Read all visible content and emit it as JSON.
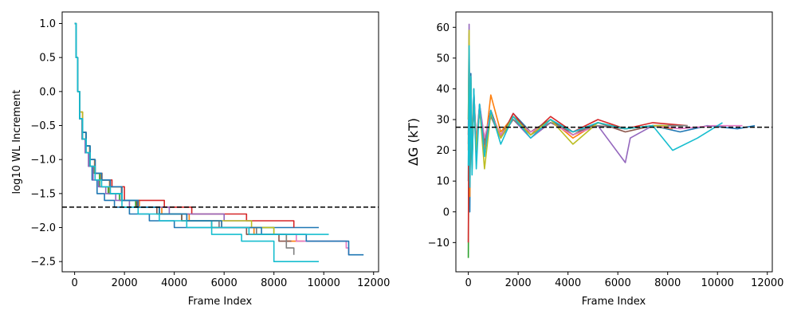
{
  "chart_data": [
    {
      "type": "line",
      "title": "",
      "xlabel": "Frame Index",
      "ylabel": "log10 WL Increment",
      "xlim": [
        -500,
        12200
      ],
      "ylim": [
        -2.65,
        1.17
      ],
      "xticks": [
        0,
        2000,
        4000,
        6000,
        8000,
        10000,
        12000
      ],
      "xtick_labels": [
        "0",
        "2000",
        "4000",
        "6000",
        "8000",
        "10000",
        "12000"
      ],
      "yticks": [
        1.0,
        0.5,
        0.0,
        -0.5,
        -1.0,
        -1.5,
        -2.0,
        -2.5
      ],
      "ytick_labels": [
        "1.0",
        "0.5",
        "0.0",
        "−0.5",
        "−1.0",
        "−1.5",
        "−2.0",
        "−2.5"
      ],
      "reference_line": {
        "y": -1.7,
        "style": "dashed",
        "color": "#000000"
      },
      "grid": false,
      "series": [
        {
          "color": "#1f77b4",
          "x": [
            0,
            60,
            120,
            200,
            300,
            420,
            560,
            700,
            900,
            1200,
            1600,
            2200,
            3000,
            4000,
            5300,
            6800,
            8200,
            9800
          ],
          "y": [
            1.0,
            0.5,
            0.0,
            -0.4,
            -0.7,
            -0.9,
            -1.1,
            -1.3,
            -1.5,
            -1.6,
            -1.7,
            -1.8,
            -1.9,
            -2.0,
            -2.0,
            -2.0,
            -2.0,
            -2.0
          ]
        },
        {
          "color": "#ff7f0e",
          "x": [
            0,
            60,
            120,
            200,
            320,
            450,
            600,
            800,
            1050,
            1400,
            1900,
            2600,
            3500,
            4600,
            5900,
            7200,
            8500,
            9200
          ],
          "y": [
            1.0,
            0.5,
            0.0,
            -0.4,
            -0.6,
            -0.8,
            -1.0,
            -1.2,
            -1.3,
            -1.5,
            -1.6,
            -1.7,
            -1.8,
            -1.9,
            -2.0,
            -2.1,
            -2.2,
            -2.2
          ]
        },
        {
          "color": "#2ca02c",
          "x": [
            0,
            60,
            120,
            200,
            300,
            430,
            580,
            760,
            1000,
            1350,
            1800,
            2450,
            3300,
            4300,
            5500,
            6800,
            8000,
            8300
          ],
          "y": [
            1.0,
            0.5,
            0.0,
            -0.4,
            -0.7,
            -0.9,
            -1.1,
            -1.2,
            -1.4,
            -1.5,
            -1.6,
            -1.7,
            -1.8,
            -1.9,
            -2.0,
            -2.0,
            -2.1,
            -2.1
          ]
        },
        {
          "color": "#d62728",
          "x": [
            0,
            60,
            120,
            200,
            320,
            460,
            620,
            820,
            1100,
            1500,
            2000,
            2700,
            3600,
            4700,
            5500,
            6900,
            8200,
            8800
          ],
          "y": [
            1.0,
            0.5,
            0.0,
            -0.3,
            -0.6,
            -0.8,
            -1.0,
            -1.2,
            -1.3,
            -1.4,
            -1.6,
            -1.6,
            -1.7,
            -1.8,
            -1.8,
            -1.9,
            -1.9,
            -2.0
          ]
        },
        {
          "color": "#9467bd",
          "x": [
            0,
            60,
            120,
            200,
            300,
            420,
            560,
            740,
            960,
            1250,
            1650,
            2200,
            2900,
            3800,
            4900,
            6000,
            7100
          ],
          "y": [
            1.0,
            0.5,
            0.0,
            -0.4,
            -0.7,
            -0.9,
            -1.1,
            -1.3,
            -1.4,
            -1.5,
            -1.6,
            -1.7,
            -1.7,
            -1.8,
            -1.8,
            -1.9,
            -1.9
          ]
        },
        {
          "color": "#8c564b",
          "x": [
            0,
            60,
            120,
            200,
            320,
            460,
            620,
            820,
            1080,
            1420,
            1880,
            2500,
            3300,
            4300,
            5500,
            6900,
            8200,
            8700
          ],
          "y": [
            1.0,
            0.5,
            0.0,
            -0.4,
            -0.6,
            -0.8,
            -1.0,
            -1.2,
            -1.3,
            -1.4,
            -1.6,
            -1.7,
            -1.8,
            -1.9,
            -2.0,
            -2.1,
            -2.2,
            -2.2
          ]
        },
        {
          "color": "#e377c2",
          "x": [
            0,
            60,
            120,
            200,
            320,
            460,
            620,
            820,
            1080,
            1430,
            1900,
            2550,
            3400,
            4500,
            5800,
            7300,
            8900,
            10900,
            11000
          ],
          "y": [
            1.0,
            0.5,
            0.0,
            -0.4,
            -0.6,
            -0.8,
            -1.0,
            -1.2,
            -1.3,
            -1.5,
            -1.6,
            -1.7,
            -1.8,
            -1.9,
            -2.0,
            -2.1,
            -2.2,
            -2.3,
            -2.4
          ]
        },
        {
          "color": "#7f7f7f",
          "x": [
            0,
            60,
            120,
            200,
            320,
            460,
            620,
            820,
            1080,
            1430,
            1900,
            2550,
            3400,
            4500,
            5800,
            7300,
            8500,
            8800
          ],
          "y": [
            1.0,
            0.5,
            0.0,
            -0.4,
            -0.7,
            -0.9,
            -1.1,
            -1.2,
            -1.4,
            -1.5,
            -1.6,
            -1.7,
            -1.8,
            -1.9,
            -2.0,
            -2.1,
            -2.3,
            -2.4
          ]
        },
        {
          "color": "#bcbd22",
          "x": [
            0,
            60,
            120,
            200,
            320,
            460,
            620,
            820,
            1080,
            1430,
            1900,
            2550,
            3400,
            4500,
            5800,
            7100,
            8000
          ],
          "y": [
            1.0,
            0.5,
            0.0,
            -0.3,
            -0.6,
            -0.8,
            -1.0,
            -1.2,
            -1.3,
            -1.4,
            -1.6,
            -1.7,
            -1.8,
            -1.9,
            -1.9,
            -2.0,
            -2.1
          ]
        },
        {
          "color": "#17becf",
          "x": [
            0,
            60,
            120,
            200,
            320,
            460,
            620,
            820,
            1080,
            1430,
            1900,
            2550,
            3400,
            4500,
            5500,
            6700,
            8000,
            9800
          ],
          "y": [
            1.0,
            0.5,
            0.0,
            -0.4,
            -0.6,
            -0.8,
            -1.0,
            -1.2,
            -1.3,
            -1.5,
            -1.6,
            -1.7,
            -1.8,
            -1.9,
            -2.1,
            -2.2,
            -2.5,
            -2.5
          ]
        },
        {
          "color": "#1f77b4",
          "x": [
            0,
            60,
            120,
            200,
            320,
            460,
            620,
            820,
            1080,
            1430,
            1900,
            2550,
            3400,
            4500,
            5900,
            7500,
            9300,
            11000,
            11600
          ],
          "y": [
            1.0,
            0.5,
            0.0,
            -0.4,
            -0.6,
            -0.8,
            -1.0,
            -1.2,
            -1.3,
            -1.4,
            -1.6,
            -1.7,
            -1.8,
            -1.9,
            -2.0,
            -2.1,
            -2.2,
            -2.4,
            -2.4
          ]
        },
        {
          "color": "#17becf",
          "x": [
            0,
            60,
            120,
            200,
            320,
            460,
            620,
            820,
            1080,
            1430,
            1900,
            2550,
            3400,
            4500,
            5700,
            7000,
            8600,
            10200
          ],
          "y": [
            1.0,
            0.5,
            0.0,
            -0.4,
            -0.7,
            -0.9,
            -1.1,
            -1.3,
            -1.4,
            -1.5,
            -1.7,
            -1.8,
            -1.9,
            -2.0,
            -2.0,
            -2.1,
            -2.1,
            -2.1
          ]
        }
      ]
    },
    {
      "type": "line",
      "title": "",
      "xlabel": "Frame Index",
      "ylabel": "ΔG (kT)",
      "xlim": [
        -500,
        12200
      ],
      "ylim": [
        -19.5,
        65
      ],
      "xticks": [
        0,
        2000,
        4000,
        6000,
        8000,
        10000,
        12000
      ],
      "xtick_labels": [
        "0",
        "2000",
        "4000",
        "6000",
        "8000",
        "10000",
        "12000"
      ],
      "yticks": [
        60,
        50,
        40,
        30,
        20,
        10,
        0,
        -10
      ],
      "ytick_labels": [
        "60",
        "50",
        "40",
        "30",
        "20",
        "10",
        "0",
        "−10"
      ],
      "reference_line": {
        "y": 27.5,
        "style": "dashed",
        "color": "#000000"
      },
      "grid": false,
      "series": [
        {
          "color": "#1f77b4",
          "x": [
            0,
            30,
            60,
            100,
            150,
            220,
            320,
            450,
            650,
            900,
            1300,
            1800,
            2500,
            3300,
            4200,
            5200,
            6300,
            7400,
            8500,
            9600,
            10800,
            11500
          ],
          "y": [
            10,
            55,
            0,
            45,
            15,
            40,
            20,
            35,
            22,
            33,
            24,
            32,
            26,
            30,
            25,
            29,
            27,
            28,
            26,
            28,
            27,
            28
          ]
        },
        {
          "color": "#ff7f0e",
          "x": [
            0,
            30,
            60,
            100,
            150,
            220,
            320,
            450,
            650,
            900,
            1300,
            1800,
            2500,
            3300,
            4200,
            5200,
            6300,
            7400,
            8200
          ],
          "y": [
            20,
            58,
            5,
            40,
            18,
            38,
            22,
            33,
            20,
            38,
            26,
            31,
            25,
            30,
            24,
            29,
            27,
            28,
            27
          ]
        },
        {
          "color": "#2ca02c",
          "x": [
            0,
            30,
            60,
            100,
            150,
            220,
            320,
            450,
            650,
            900,
            1300,
            1800,
            2500,
            3300,
            4200,
            5200,
            6300,
            7400,
            8300
          ],
          "y": [
            -15,
            45,
            10,
            38,
            14,
            37,
            21,
            34,
            23,
            32,
            25,
            31,
            26,
            30,
            25,
            29,
            27,
            28,
            28
          ]
        },
        {
          "color": "#d62728",
          "x": [
            0,
            30,
            60,
            100,
            150,
            220,
            320,
            450,
            650,
            900,
            1300,
            1800,
            2500,
            3300,
            4200,
            5200,
            6300,
            7400,
            8800
          ],
          "y": [
            -10,
            50,
            8,
            42,
            16,
            36,
            19,
            34,
            22,
            33,
            24,
            32,
            25,
            31,
            26,
            30,
            27,
            29,
            28
          ]
        },
        {
          "color": "#9467bd",
          "x": [
            0,
            30,
            60,
            100,
            150,
            220,
            320,
            450,
            650,
            900,
            1300,
            1800,
            2500,
            3300,
            4200,
            5200,
            6300,
            6500,
            7400
          ],
          "y": [
            30,
            61,
            15,
            44,
            20,
            39,
            23,
            35,
            24,
            31,
            25,
            30,
            24,
            29,
            26,
            28,
            16,
            24,
            28
          ]
        },
        {
          "color": "#8c564b",
          "x": [
            0,
            30,
            60,
            100,
            150,
            220,
            320,
            450,
            650,
            900,
            1300,
            1800,
            2500,
            3300,
            4200,
            5200,
            6300,
            7400,
            8700
          ],
          "y": [
            25,
            52,
            12,
            40,
            18,
            37,
            21,
            33,
            23,
            32,
            25,
            31,
            26,
            30,
            25,
            29,
            26,
            28,
            28
          ]
        },
        {
          "color": "#e377c2",
          "x": [
            0,
            30,
            60,
            100,
            150,
            220,
            320,
            450,
            650,
            900,
            1300,
            1800,
            2500,
            3300,
            4200,
            5200,
            6300,
            7400,
            8500,
            9800,
            11000
          ],
          "y": [
            28,
            48,
            14,
            41,
            19,
            36,
            22,
            34,
            24,
            32,
            25,
            30,
            26,
            29,
            25,
            28,
            27,
            28,
            27,
            28,
            28
          ]
        },
        {
          "color": "#7f7f7f",
          "x": [
            0,
            30,
            60,
            100,
            150,
            220,
            320,
            450,
            650,
            900,
            1300,
            1800,
            2500,
            3300,
            4200,
            5200,
            6300,
            7400,
            8800
          ],
          "y": [
            22,
            47,
            13,
            39,
            17,
            35,
            21,
            33,
            22,
            31,
            24,
            30,
            25,
            29,
            26,
            28,
            27,
            28,
            28
          ]
        },
        {
          "color": "#bcbd22",
          "x": [
            0,
            30,
            60,
            100,
            150,
            220,
            320,
            450,
            650,
            900,
            1300,
            1800,
            2500,
            3300,
            4200,
            5200,
            6300,
            7400,
            8000
          ],
          "y": [
            30,
            59,
            10,
            44,
            17,
            38,
            20,
            34,
            14,
            32,
            24,
            31,
            25,
            30,
            22,
            29,
            27,
            28,
            28
          ]
        },
        {
          "color": "#17becf",
          "x": [
            0,
            30,
            60,
            100,
            150,
            220,
            320,
            450,
            650,
            900,
            1300,
            1800,
            2500,
            3300,
            4200,
            5200,
            6300,
            7400,
            8200,
            9200,
            9800,
            10200
          ],
          "y": [
            15,
            54,
            8,
            44,
            12,
            40,
            14,
            35,
            18,
            33,
            22,
            31,
            24,
            30,
            26,
            29,
            27,
            28,
            20,
            24,
            27,
            29
          ]
        }
      ]
    }
  ]
}
